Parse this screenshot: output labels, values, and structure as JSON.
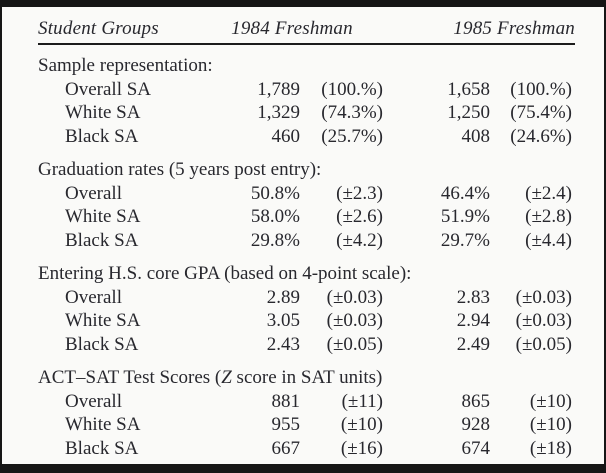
{
  "style": {
    "frame_color": "#161616",
    "ink_color": "#28282e",
    "background": "#fafaf8"
  },
  "header": {
    "student_groups": "Student Groups",
    "col_1984": "1984 Freshman",
    "col_1985": "1985 Freshman"
  },
  "sections": [
    {
      "title_pre": "Sample representation:",
      "title_italic": "",
      "title_post": "",
      "rows": [
        {
          "label": "Overall SA",
          "v1984": "1,789",
          "moe1984": "(100.%)",
          "v1985": "1,658",
          "moe1985": "(100.%)"
        },
        {
          "label": "White SA",
          "v1984": "1,329",
          "moe1984": "(74.3%)",
          "v1985": "1,250",
          "moe1985": "(75.4%)"
        },
        {
          "label": "Black SA",
          "v1984": "460",
          "moe1984": "(25.7%)",
          "v1985": "408",
          "moe1985": "(24.6%)"
        }
      ]
    },
    {
      "title_pre": "Graduation rates (5 years post entry):",
      "title_italic": "",
      "title_post": "",
      "rows": [
        {
          "label": "Overall",
          "v1984": "50.8%",
          "moe1984": "(±2.3)",
          "v1985": "46.4%",
          "moe1985": "(±2.4)"
        },
        {
          "label": "White SA",
          "v1984": "58.0%",
          "moe1984": "(±2.6)",
          "v1985": "51.9%",
          "moe1985": "(±2.8)"
        },
        {
          "label": "Black SA",
          "v1984": "29.8%",
          "moe1984": "(±4.2)",
          "v1985": "29.7%",
          "moe1985": "(±4.4)"
        }
      ]
    },
    {
      "title_pre": "Entering H.S. core GPA (based on 4-point scale):",
      "title_italic": "",
      "title_post": "",
      "rows": [
        {
          "label": "Overall",
          "v1984": "2.89",
          "moe1984": "(±0.03)",
          "v1985": "2.83",
          "moe1985": "(±0.03)"
        },
        {
          "label": "White SA",
          "v1984": "3.05",
          "moe1984": "(±0.03)",
          "v1985": "2.94",
          "moe1985": "(±0.03)"
        },
        {
          "label": "Black SA",
          "v1984": "2.43",
          "moe1984": "(±0.05)",
          "v1985": "2.49",
          "moe1985": "(±0.05)"
        }
      ]
    },
    {
      "title_pre": "ACT–SAT Test Scores (",
      "title_italic": "Z",
      "title_post": " score in SAT units)",
      "rows": [
        {
          "label": "Overall",
          "v1984": "881",
          "moe1984": "(±11)",
          "v1985": "865",
          "moe1985": "(±10)"
        },
        {
          "label": "White SA",
          "v1984": "955",
          "moe1984": "(±10)",
          "v1985": "928",
          "moe1985": "(±10)"
        },
        {
          "label": "Black SA",
          "v1984": "667",
          "moe1984": "(±16)",
          "v1985": "674",
          "moe1985": "(±18)"
        }
      ]
    }
  ]
}
